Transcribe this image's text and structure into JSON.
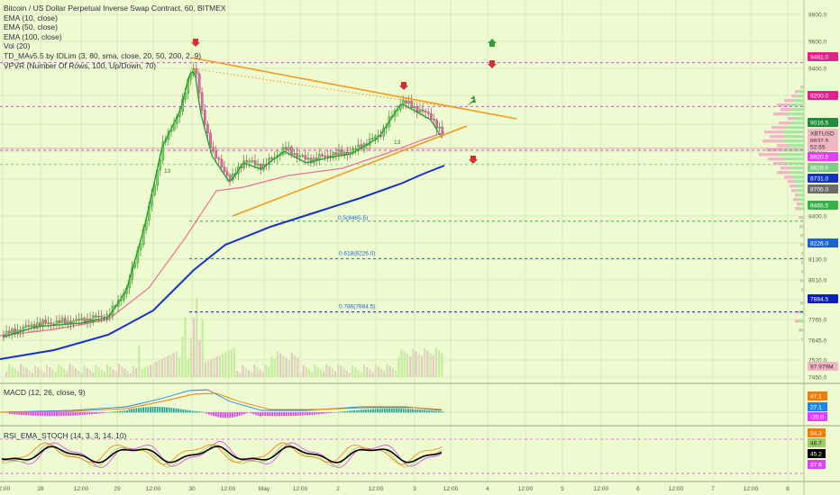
{
  "legend": {
    "title": "Bitcoin / US Dollar Perpetual Inverse Swap Contract, 60, BITMEX",
    "indicators": [
      "EMA (10, close)",
      "EMA (50, close)",
      "EMA (100, close)",
      "Vol (20)",
      "TD_MAv5.5 by IDLim (3, 80, sma, close, 20, 50, 200, 2, 9)",
      "VPVR (Number Of Rows, 100, Up/Down, 70)"
    ]
  },
  "macd_label": "MACD (12, 26, close, 9)",
  "rsi_label": "RSI_EMA_STOCH (14, 3, 3, 14, 10)",
  "x_axis": {
    "ticks": [
      "12:00",
      "28",
      "12:00",
      "29",
      "12:00",
      "30",
      "12:00",
      "May",
      "12:00",
      "2",
      "12:00",
      "3",
      "12:00",
      "4",
      "12:00",
      "5",
      "12:00",
      "6",
      "12:00",
      "7",
      "12:00",
      "8"
    ]
  },
  "price_axis": {
    "ticks": [
      "9800.0",
      "9600.0",
      "9400.0",
      "9200.0",
      "9000.0",
      "8800.0",
      "8600.0",
      "8400.0",
      "8290.0",
      "8130.0",
      "8010.0",
      "7890.0",
      "7765.0",
      "7645.0",
      "7520.0",
      "7450.0"
    ]
  },
  "price_tags": [
    {
      "text": "9481.0",
      "bg": "#e91e8c",
      "fg": "#ffffff"
    },
    {
      "text": "9200.0",
      "bg": "#e91e8c",
      "fg": "#ffffff"
    },
    {
      "text": "9016.5",
      "bg": "#1e8c3a",
      "fg": "#ffffff"
    },
    {
      "text": "XBTUSD",
      "bg": "#f2b6c6",
      "fg": "#333333"
    },
    {
      "text": "8932.5",
      "bg": "#f2b6c6",
      "fg": "#333333"
    },
    {
      "text": "52:55",
      "bg": "#f2b6c6",
      "fg": "#333333"
    },
    {
      "text": "8920.5",
      "bg": "#e040fb",
      "fg": "#ffffff"
    },
    {
      "text": "8829.0",
      "bg": "#7bd17b",
      "fg": "#ffffff"
    },
    {
      "text": "8731.0",
      "bg": "#1532c8",
      "fg": "#ffffff"
    },
    {
      "text": "8705.0",
      "bg": "#6b6b6b",
      "fg": "#ffffff"
    },
    {
      "text": "8465.5",
      "bg": "#34b34a",
      "fg": "#ffffff"
    },
    {
      "text": "8226.0",
      "bg": "#1e63d6",
      "fg": "#ffffff"
    },
    {
      "text": "7884.5",
      "bg": "#0a1fb5",
      "fg": "#ffffff"
    },
    {
      "text": "97.979M",
      "bg": "#f2b6c6",
      "fg": "#333333"
    }
  ],
  "macd_tags": [
    {
      "text": "47.1",
      "bg": "#f57c00",
      "fg": "#ffffff"
    },
    {
      "text": "27.1",
      "bg": "#1e88e5",
      "fg": "#ffffff"
    },
    {
      "text": "-20.0",
      "bg": "#e040fb",
      "fg": "#ffffff"
    }
  ],
  "rsi_tags": [
    {
      "text": "54.3",
      "bg": "#f57c00",
      "fg": "#ffffff"
    },
    {
      "text": "46.7",
      "bg": "#9ccc65",
      "fg": "#333333"
    },
    {
      "text": "45.2",
      "bg": "#000000",
      "fg": "#ffffff"
    },
    {
      "text": "37.6",
      "bg": "#e040fb",
      "fg": "#ffffff"
    }
  ],
  "fib_labels": [
    "0.5(8465.5)",
    "0.618(8226.0)",
    "0.786(7884.5)"
  ],
  "td_counts": [
    "13",
    "13"
  ],
  "colors": {
    "background": "#eefad0",
    "ema10": "#1f9e2c",
    "ema50": "#e8719a",
    "ema100": "#1432c8",
    "trendline": "#f59a1e",
    "fib_line": "#1e63d6",
    "magenta_level": "#e040fb",
    "candle_up": "#7ad85a",
    "candle_down": "#e56ab0"
  },
  "chart_data": {
    "type": "line",
    "symbol": "XBTUSD",
    "interval": "60",
    "y_range": [
      7450,
      9900
    ],
    "horizontal_levels": [
      9481.0,
      9200.0,
      8920.5,
      8829.0,
      8465.5,
      8226.0,
      7884.5
    ],
    "fib_levels": [
      {
        "ratio": 0.5,
        "price": 8465.5
      },
      {
        "ratio": 0.618,
        "price": 8226.0
      },
      {
        "ratio": 0.786,
        "price": 7884.5
      }
    ],
    "last_price": 8932.5,
    "ema10_last": 9016.5,
    "ema100_last": 8731.0,
    "volume_last": "97.979M",
    "series": [
      {
        "name": "XBTUSD close (approx)",
        "x": [
          0,
          1,
          2,
          3,
          4,
          5,
          6,
          7,
          8,
          9,
          10,
          11,
          12,
          13,
          14,
          15,
          16,
          17,
          18,
          19,
          20,
          21,
          22,
          23,
          24,
          25,
          26,
          27,
          28,
          29,
          30,
          31,
          32,
          33,
          34,
          35
        ],
        "values": [
          7700,
          7720,
          7740,
          7760,
          7800,
          7850,
          7950,
          8150,
          8450,
          8750,
          9000,
          9400,
          9250,
          9050,
          8850,
          8700,
          8800,
          8750,
          8700,
          8780,
          8800,
          8850,
          8780,
          8800,
          8850,
          8820,
          8900,
          8850,
          8950,
          9050,
          9150,
          9100,
          9080,
          9050,
          9000,
          8932
        ]
      },
      {
        "name": "EMA (100, close) (approx)",
        "x": [
          0,
          5,
          10,
          15,
          20,
          25,
          30,
          35
        ],
        "values": [
          7520,
          7580,
          7750,
          8100,
          8350,
          8500,
          8650,
          8731
        ]
      }
    ],
    "macd": {
      "values": [
        47.1,
        27.1,
        -20.0
      ]
    },
    "rsi_stoch": {
      "values": [
        54.3,
        46.7,
        45.2,
        37.6
      ]
    }
  }
}
